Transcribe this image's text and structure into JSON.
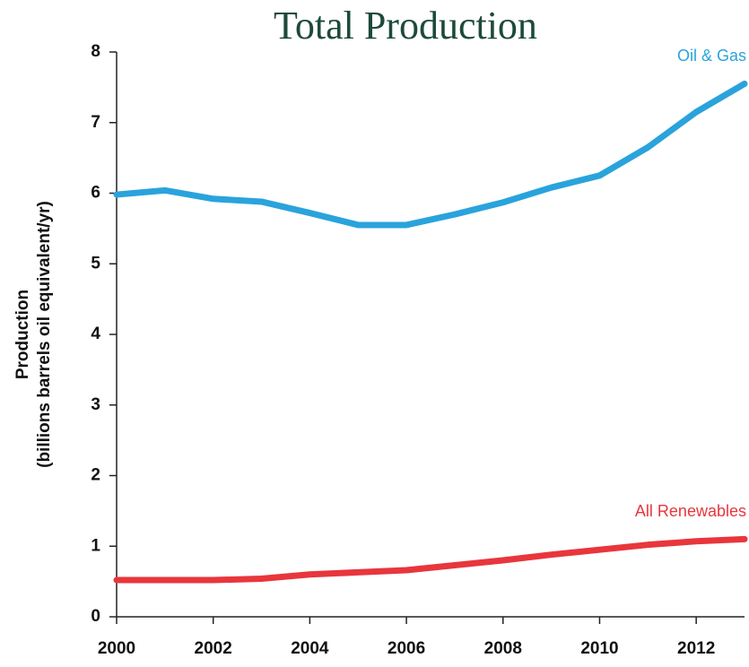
{
  "chart_data": {
    "type": "line",
    "title": "Total Production",
    "y_label": [
      "Production",
      "(billions barrels oil equivalent/yr)"
    ],
    "x": [
      2000,
      2001,
      2002,
      2003,
      2004,
      2005,
      2006,
      2007,
      2008,
      2009,
      2010,
      2011,
      2012,
      2013
    ],
    "series": [
      {
        "name": "Oil & Gas",
        "color": "#2aa3dc",
        "values": [
          5.98,
          6.04,
          5.92,
          5.88,
          5.72,
          5.55,
          5.55,
          5.7,
          5.87,
          6.08,
          6.25,
          6.65,
          7.15,
          7.55
        ]
      },
      {
        "name": "All Renewables",
        "color": "#e8363c",
        "values": [
          0.52,
          0.52,
          0.52,
          0.54,
          0.6,
          0.63,
          0.66,
          0.73,
          0.8,
          0.88,
          0.95,
          1.02,
          1.07,
          1.1
        ]
      }
    ],
    "xlim": [
      2000,
      2013
    ],
    "xticks": [
      2000,
      2002,
      2004,
      2006,
      2008,
      2010,
      2012
    ],
    "ylim": [
      0,
      8
    ],
    "yticks": [
      0,
      1,
      2,
      3,
      4,
      5,
      6,
      7,
      8
    ],
    "grid": false
  }
}
